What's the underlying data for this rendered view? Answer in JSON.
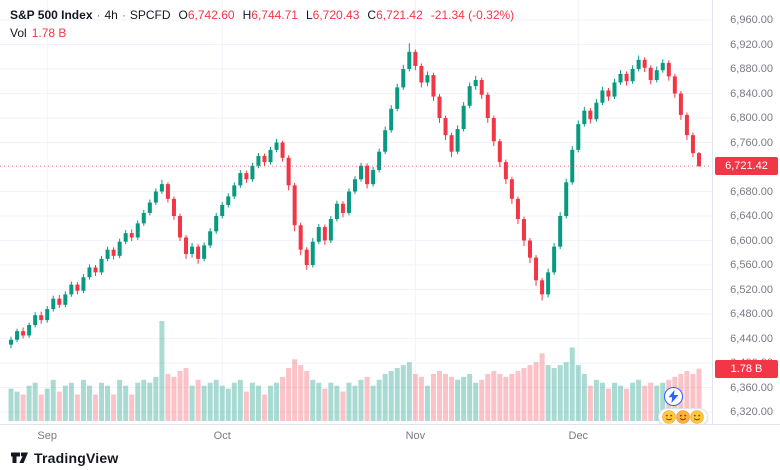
{
  "header": {
    "symbol": "S&P 500 Index",
    "sep": "·",
    "interval": "4h",
    "exchange": "SPCFD",
    "ohlc": {
      "o_label": "O",
      "o": "6,742.60",
      "h_label": "H",
      "h": "6,744.71",
      "l_label": "L",
      "l": "6,720.43",
      "c_label": "C",
      "c": "6,721.42"
    },
    "change": "-21.34 (-0.32%)",
    "vol_label": "Vol",
    "vol_value": "1.78 B"
  },
  "colors": {
    "up": "#089981",
    "down": "#F23645",
    "vol_up": "rgba(8,153,129,0.35)",
    "vol_down": "rgba(242,54,69,0.30)",
    "grid": "#F0F3FA",
    "axis_text": "#787B86",
    "text": "#131722",
    "badge_text": "#FFFFFF",
    "accent_blue": "#2962FF"
  },
  "y_axis": {
    "ticks": [
      {
        "text": "6,960.00",
        "value": 6960
      },
      {
        "text": "6,920.00",
        "value": 6920
      },
      {
        "text": "6,880.00",
        "value": 6880
      },
      {
        "text": "6,840.00",
        "value": 6840
      },
      {
        "text": "6,800.00",
        "value": 6800
      },
      {
        "text": "6,760.00",
        "value": 6760
      },
      {
        "text": "6,720.00",
        "value": 6720
      },
      {
        "text": "6,680.00",
        "value": 6680
      },
      {
        "text": "6,640.00",
        "value": 6640
      },
      {
        "text": "6,600.00",
        "value": 6600
      },
      {
        "text": "6,560.00",
        "value": 6560
      },
      {
        "text": "6,520.00",
        "value": 6520
      },
      {
        "text": "6,480.00",
        "value": 6480
      },
      {
        "text": "6,440.00",
        "value": 6440
      },
      {
        "text": "6,400.00",
        "value": 6400
      },
      {
        "text": "6,360.00",
        "value": 6360
      },
      {
        "text": "6,320.00",
        "value": 6320
      }
    ]
  },
  "price_label": {
    "text": "6,721.42",
    "value": 6721.42
  },
  "volume_label": {
    "text": "1.78 B"
  },
  "footer": {
    "brand": "TradingView"
  },
  "widgets": {
    "lightning_icon": "lightning-bolt",
    "reactions_icon": "emoji-faces"
  },
  "chart_data": {
    "type": "candlestick+volume",
    "title": "S&P 500 Index · 4h · SPCFD",
    "ohlc_format": [
      "open",
      "high",
      "low",
      "close",
      "volume_B"
    ],
    "y_range": [
      6320,
      6960
    ],
    "last_price": 6721.42,
    "last_volume_text": "1.78 B",
    "months": [
      {
        "label": "Sep",
        "index": 6
      },
      {
        "label": "Oct",
        "index": 35
      },
      {
        "label": "Nov",
        "index": 67
      },
      {
        "label": "Dec",
        "index": 94
      }
    ],
    "candles": [
      [
        6430,
        6443,
        6424,
        6438,
        1.1
      ],
      [
        6438,
        6456,
        6434,
        6452,
        1.0
      ],
      [
        6452,
        6458,
        6440,
        6445,
        0.9
      ],
      [
        6445,
        6466,
        6441,
        6462,
        1.2
      ],
      [
        6462,
        6483,
        6458,
        6478,
        1.3
      ],
      [
        6478,
        6484,
        6464,
        6470,
        0.9
      ],
      [
        6470,
        6493,
        6466,
        6488,
        1.1
      ],
      [
        6488,
        6510,
        6484,
        6505,
        1.4
      ],
      [
        6505,
        6511,
        6490,
        6495,
        1.0
      ],
      [
        6495,
        6517,
        6491,
        6512,
        1.2
      ],
      [
        6512,
        6533,
        6508,
        6528,
        1.3
      ],
      [
        6528,
        6532,
        6512,
        6518,
        0.9
      ],
      [
        6518,
        6545,
        6514,
        6540,
        1.4
      ],
      [
        6540,
        6561,
        6536,
        6556,
        1.2
      ],
      [
        6556,
        6560,
        6542,
        6548,
        0.9
      ],
      [
        6548,
        6575,
        6544,
        6570,
        1.3
      ],
      [
        6570,
        6590,
        6566,
        6585,
        1.2
      ],
      [
        6585,
        6589,
        6569,
        6575,
        0.9
      ],
      [
        6575,
        6603,
        6571,
        6598,
        1.4
      ],
      [
        6598,
        6617,
        6594,
        6612,
        1.2
      ],
      [
        6612,
        6618,
        6599,
        6605,
        0.9
      ],
      [
        6605,
        6633,
        6601,
        6628,
        1.3
      ],
      [
        6628,
        6650,
        6624,
        6645,
        1.4
      ],
      [
        6645,
        6667,
        6641,
        6662,
        1.3
      ],
      [
        6662,
        6685,
        6658,
        6680,
        1.5
      ],
      [
        6680,
        6699,
        6676,
        6692,
        3.4
      ],
      [
        6692,
        6695,
        6662,
        6668,
        1.6
      ],
      [
        6668,
        6672,
        6634,
        6640,
        1.5
      ],
      [
        6640,
        6644,
        6599,
        6605,
        1.7
      ],
      [
        6605,
        6609,
        6570,
        6578,
        1.8
      ],
      [
        6578,
        6596,
        6572,
        6590,
        1.2
      ],
      [
        6590,
        6594,
        6562,
        6570,
        1.4
      ],
      [
        6570,
        6597,
        6566,
        6592,
        1.2
      ],
      [
        6592,
        6620,
        6588,
        6615,
        1.3
      ],
      [
        6615,
        6645,
        6611,
        6640,
        1.4
      ],
      [
        6640,
        6663,
        6636,
        6658,
        1.2
      ],
      [
        6658,
        6677,
        6654,
        6672,
        1.1
      ],
      [
        6672,
        6695,
        6668,
        6690,
        1.3
      ],
      [
        6690,
        6715,
        6686,
        6710,
        1.4
      ],
      [
        6710,
        6714,
        6694,
        6700,
        1.0
      ],
      [
        6700,
        6727,
        6696,
        6722,
        1.3
      ],
      [
        6722,
        6743,
        6718,
        6738,
        1.2
      ],
      [
        6738,
        6742,
        6722,
        6728,
        0.9
      ],
      [
        6728,
        6753,
        6724,
        6748,
        1.2
      ],
      [
        6748,
        6766,
        6744,
        6760,
        1.3
      ],
      [
        6760,
        6763,
        6729,
        6735,
        1.5
      ],
      [
        6735,
        6739,
        6682,
        6690,
        1.8
      ],
      [
        6690,
        6694,
        6615,
        6625,
        2.1
      ],
      [
        6625,
        6629,
        6576,
        6585,
        1.9
      ],
      [
        6585,
        6589,
        6552,
        6560,
        1.7
      ],
      [
        6560,
        6604,
        6556,
        6598,
        1.4
      ],
      [
        6598,
        6627,
        6594,
        6622,
        1.3
      ],
      [
        6622,
        6626,
        6593,
        6600,
        1.1
      ],
      [
        6600,
        6640,
        6596,
        6635,
        1.3
      ],
      [
        6635,
        6665,
        6631,
        6660,
        1.2
      ],
      [
        6660,
        6664,
        6638,
        6645,
        1.0
      ],
      [
        6645,
        6685,
        6641,
        6680,
        1.3
      ],
      [
        6680,
        6705,
        6676,
        6700,
        1.2
      ],
      [
        6700,
        6727,
        6696,
        6722,
        1.4
      ],
      [
        6722,
        6726,
        6685,
        6692,
        1.5
      ],
      [
        6692,
        6720,
        6688,
        6715,
        1.2
      ],
      [
        6715,
        6750,
        6711,
        6745,
        1.4
      ],
      [
        6745,
        6786,
        6741,
        6780,
        1.6
      ],
      [
        6780,
        6821,
        6776,
        6815,
        1.7
      ],
      [
        6815,
        6856,
        6811,
        6850,
        1.8
      ],
      [
        6850,
        6887,
        6846,
        6880,
        1.9
      ],
      [
        6880,
        6922,
        6876,
        6908,
        2.0
      ],
      [
        6908,
        6912,
        6878,
        6885,
        1.6
      ],
      [
        6885,
        6889,
        6850,
        6858,
        1.5
      ],
      [
        6858,
        6876,
        6852,
        6870,
        1.2
      ],
      [
        6870,
        6874,
        6828,
        6835,
        1.6
      ],
      [
        6835,
        6839,
        6792,
        6800,
        1.7
      ],
      [
        6800,
        6804,
        6764,
        6772,
        1.6
      ],
      [
        6772,
        6776,
        6736,
        6745,
        1.5
      ],
      [
        6745,
        6788,
        6741,
        6782,
        1.4
      ],
      [
        6782,
        6826,
        6778,
        6820,
        1.5
      ],
      [
        6820,
        6858,
        6816,
        6852,
        1.6
      ],
      [
        6852,
        6869,
        6846,
        6862,
        1.3
      ],
      [
        6862,
        6866,
        6831,
        6838,
        1.4
      ],
      [
        6838,
        6842,
        6792,
        6800,
        1.6
      ],
      [
        6800,
        6804,
        6754,
        6762,
        1.7
      ],
      [
        6762,
        6766,
        6720,
        6728,
        1.6
      ],
      [
        6728,
        6732,
        6692,
        6700,
        1.5
      ],
      [
        6700,
        6704,
        6660,
        6668,
        1.6
      ],
      [
        6668,
        6672,
        6627,
        6635,
        1.7
      ],
      [
        6635,
        6639,
        6591,
        6600,
        1.8
      ],
      [
        6600,
        6604,
        6563,
        6572,
        1.9
      ],
      [
        6572,
        6576,
        6526,
        6535,
        2.0
      ],
      [
        6535,
        6539,
        6502,
        6512,
        2.3
      ],
      [
        6512,
        6554,
        6507,
        6548,
        1.9
      ],
      [
        6548,
        6596,
        6544,
        6590,
        1.8
      ],
      [
        6590,
        6646,
        6586,
        6640,
        1.9
      ],
      [
        6640,
        6701,
        6636,
        6695,
        2.0
      ],
      [
        6695,
        6754,
        6691,
        6748,
        2.5
      ],
      [
        6748,
        6796,
        6744,
        6790,
        1.9
      ],
      [
        6790,
        6818,
        6786,
        6812,
        1.6
      ],
      [
        6812,
        6816,
        6791,
        6798,
        1.2
      ],
      [
        6798,
        6831,
        6794,
        6825,
        1.4
      ],
      [
        6825,
        6851,
        6821,
        6845,
        1.3
      ],
      [
        6845,
        6849,
        6828,
        6835,
        1.1
      ],
      [
        6835,
        6864,
        6831,
        6858,
        1.3
      ],
      [
        6858,
        6878,
        6854,
        6872,
        1.2
      ],
      [
        6872,
        6876,
        6853,
        6860,
        1.1
      ],
      [
        6860,
        6886,
        6856,
        6880,
        1.3
      ],
      [
        6880,
        6902,
        6876,
        6895,
        1.4
      ],
      [
        6895,
        6899,
        6875,
        6882,
        1.2
      ],
      [
        6882,
        6886,
        6855,
        6862,
        1.3
      ],
      [
        6862,
        6884,
        6858,
        6878,
        1.2
      ],
      [
        6878,
        6896,
        6874,
        6890,
        1.3
      ],
      [
        6890,
        6894,
        6861,
        6868,
        1.4
      ],
      [
        6868,
        6872,
        6833,
        6840,
        1.5
      ],
      [
        6840,
        6844,
        6797,
        6805,
        1.6
      ],
      [
        6805,
        6809,
        6764,
        6772,
        1.7
      ],
      [
        6772,
        6776,
        6736,
        6742.6,
        1.6
      ],
      [
        6742.6,
        6744.71,
        6720.43,
        6721.42,
        1.78
      ]
    ]
  }
}
